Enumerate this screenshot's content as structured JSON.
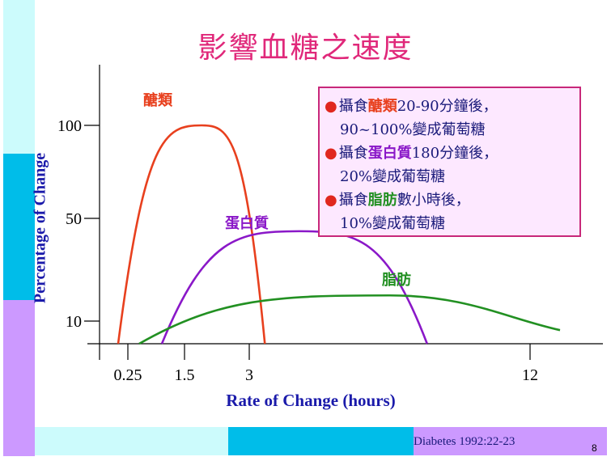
{
  "slide": {
    "title": "影響血糖之速度",
    "source": "Diabetes 1992:22-23",
    "page_number": "8"
  },
  "colors": {
    "carbohydrate": "#e8401e",
    "protein": "#8a18c8",
    "fat": "#229022",
    "title": "#e0287a",
    "axis_label": "#1a1aaa",
    "box_border": "#c8287a",
    "box_fill": "#fde8ff"
  },
  "notes": [
    {
      "prefix": "攝食",
      "highlight": "醣類",
      "suffix": "20-90分鐘後，",
      "second_line": "90~100%變成葡萄糖",
      "color": "#e8401e"
    },
    {
      "prefix": "攝食",
      "highlight": "蛋白質",
      "suffix": "180分鐘後，",
      "second_line": "20%變成葡萄糖",
      "color": "#8a18c8"
    },
    {
      "prefix": "攝食",
      "highlight": "脂肪",
      "suffix": "數小時後，",
      "second_line": "10%變成葡萄糖",
      "color": "#229022"
    }
  ],
  "chart_data": {
    "type": "line",
    "title": "影響血糖之速度",
    "xlabel": "Rate of Change (hours)",
    "ylabel": "Percentage of Change",
    "x_ticks": [
      0.25,
      1.5,
      3,
      12
    ],
    "x_tick_labels": [
      "0.25",
      "1.5",
      "3",
      "12"
    ],
    "y_ticks": [
      10,
      50,
      100
    ],
    "y_tick_labels": [
      "10",
      "50",
      "100"
    ],
    "legend": "none",
    "grid": false,
    "series": [
      {
        "name": "醣類",
        "x": [
          0.0,
          1.9,
          3.5
        ],
        "y": [
          0,
          100,
          0
        ]
      },
      {
        "name": "蛋白質",
        "x": [
          1.0,
          4.6,
          8.7
        ],
        "y": [
          0,
          45,
          0
        ]
      },
      {
        "name": "脂肪",
        "x": [
          0.5,
          7.5,
          13.0
        ],
        "y": [
          0,
          20,
          6
        ]
      }
    ]
  }
}
